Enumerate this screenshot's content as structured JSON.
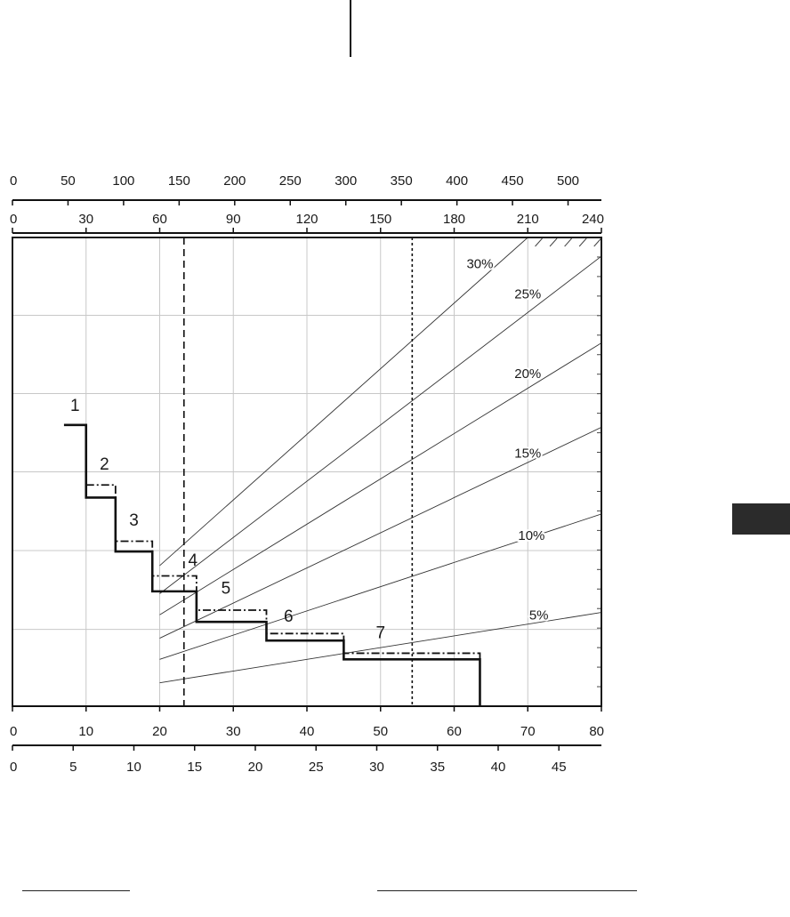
{
  "chart_data": {
    "type": "line",
    "title": "",
    "xlabel": "",
    "ylabel": "",
    "xlim": [
      0,
      80
    ],
    "grid": true,
    "axes": {
      "bottom_primary": {
        "range": [
          0,
          80
        ],
        "ticks": [
          0,
          10,
          20,
          30,
          40,
          50,
          60,
          70,
          80
        ],
        "labels": [
          "0",
          "10",
          "20",
          "30",
          "40",
          "50",
          "60",
          "70",
          "80"
        ]
      },
      "bottom_secondary": {
        "range": [
          0,
          48.5
        ],
        "ticks": [
          0,
          5,
          10,
          15,
          20,
          25,
          30,
          35,
          40,
          45
        ],
        "labels": [
          "0",
          "5",
          "10",
          "15",
          "20",
          "25",
          "30",
          "35",
          "40",
          "45"
        ]
      },
      "top_primary": {
        "range": [
          0,
          530
        ],
        "ticks": [
          0,
          50,
          100,
          150,
          200,
          250,
          300,
          350,
          400,
          450,
          500
        ],
        "labels": [
          "0",
          "50",
          "100",
          "150",
          "200",
          "250",
          "300",
          "350",
          "400",
          "450",
          "500"
        ]
      },
      "top_secondary": {
        "range": [
          0,
          240
        ],
        "ticks": [
          0,
          30,
          60,
          90,
          120,
          150,
          180,
          210,
          240
        ],
        "labels": [
          "0",
          "30",
          "60",
          "90",
          "120",
          "150",
          "180",
          "210",
          "240"
        ]
      }
    },
    "y_grid_fractions": [
      0.164,
      0.332,
      0.5,
      0.667,
      0.834
    ],
    "steps_solid": [
      {
        "x0": 7,
        "x1": 10,
        "y": 0.6
      },
      {
        "x0": 10,
        "x1": 14,
        "y": 0.445
      },
      {
        "x0": 14,
        "x1": 19,
        "y": 0.33
      },
      {
        "x0": 19,
        "x1": 25,
        "y": 0.245
      },
      {
        "x0": 25,
        "x1": 34.5,
        "y": 0.18
      },
      {
        "x0": 34.5,
        "x1": 45,
        "y": 0.14
      },
      {
        "x0": 45,
        "x1": 63.5,
        "y": 0.1
      }
    ],
    "step_drop_end": 0,
    "steps_dashdot": [
      {
        "x0": 10,
        "x1": 14,
        "y": 0.472
      },
      {
        "x0": 14,
        "x1": 19,
        "y": 0.352
      },
      {
        "x0": 19,
        "x1": 25,
        "y": 0.278
      },
      {
        "x0": 25,
        "x1": 34.5,
        "y": 0.205
      },
      {
        "x0": 34.5,
        "x1": 45,
        "y": 0.155
      },
      {
        "x0": 45,
        "x1": 63.5,
        "y": 0.113
      }
    ],
    "step_labels": [
      {
        "text": "1",
        "x": 8.5,
        "y": 0.63
      },
      {
        "text": "2",
        "x": 12.5,
        "y": 0.505
      },
      {
        "text": "3",
        "x": 16.5,
        "y": 0.385
      },
      {
        "text": "4",
        "x": 24.5,
        "y": 0.3
      },
      {
        "text": "5",
        "x": 29,
        "y": 0.24
      },
      {
        "text": "6",
        "x": 37.5,
        "y": 0.18
      },
      {
        "text": "7",
        "x": 50,
        "y": 0.145
      }
    ],
    "rate_lines": [
      {
        "label": "30%",
        "x0": 20,
        "y0": 0.3,
        "x1": 70,
        "y1": 1.0
      },
      {
        "label": "25%",
        "x0": 20,
        "y0": 0.24,
        "x1": 80,
        "y1": 0.96
      },
      {
        "label": "20%",
        "x0": 20,
        "y0": 0.195,
        "x1": 80,
        "y1": 0.775
      },
      {
        "label": "15%",
        "x0": 20,
        "y0": 0.145,
        "x1": 80,
        "y1": 0.595
      },
      {
        "label": "10%",
        "x0": 20,
        "y0": 0.1,
        "x1": 80,
        "y1": 0.41
      },
      {
        "label": "5%",
        "x0": 20,
        "y0": 0.05,
        "x1": 80,
        "y1": 0.2
      }
    ],
    "rate_labels": [
      {
        "text": "30%",
        "x": 63.5,
        "y": 0.935
      },
      {
        "text": "25%",
        "x": 70,
        "y": 0.87
      },
      {
        "text": "20%",
        "x": 70,
        "y": 0.7
      },
      {
        "text": "15%",
        "x": 70,
        "y": 0.53
      },
      {
        "text": "10%",
        "x": 70.5,
        "y": 0.355
      },
      {
        "text": "5%",
        "x": 71.5,
        "y": 0.185
      }
    ],
    "vlines": [
      {
        "x": 23.3,
        "style": "dashed"
      },
      {
        "x": 54.3,
        "style": "dotted"
      }
    ],
    "right_tick_count": 24
  }
}
